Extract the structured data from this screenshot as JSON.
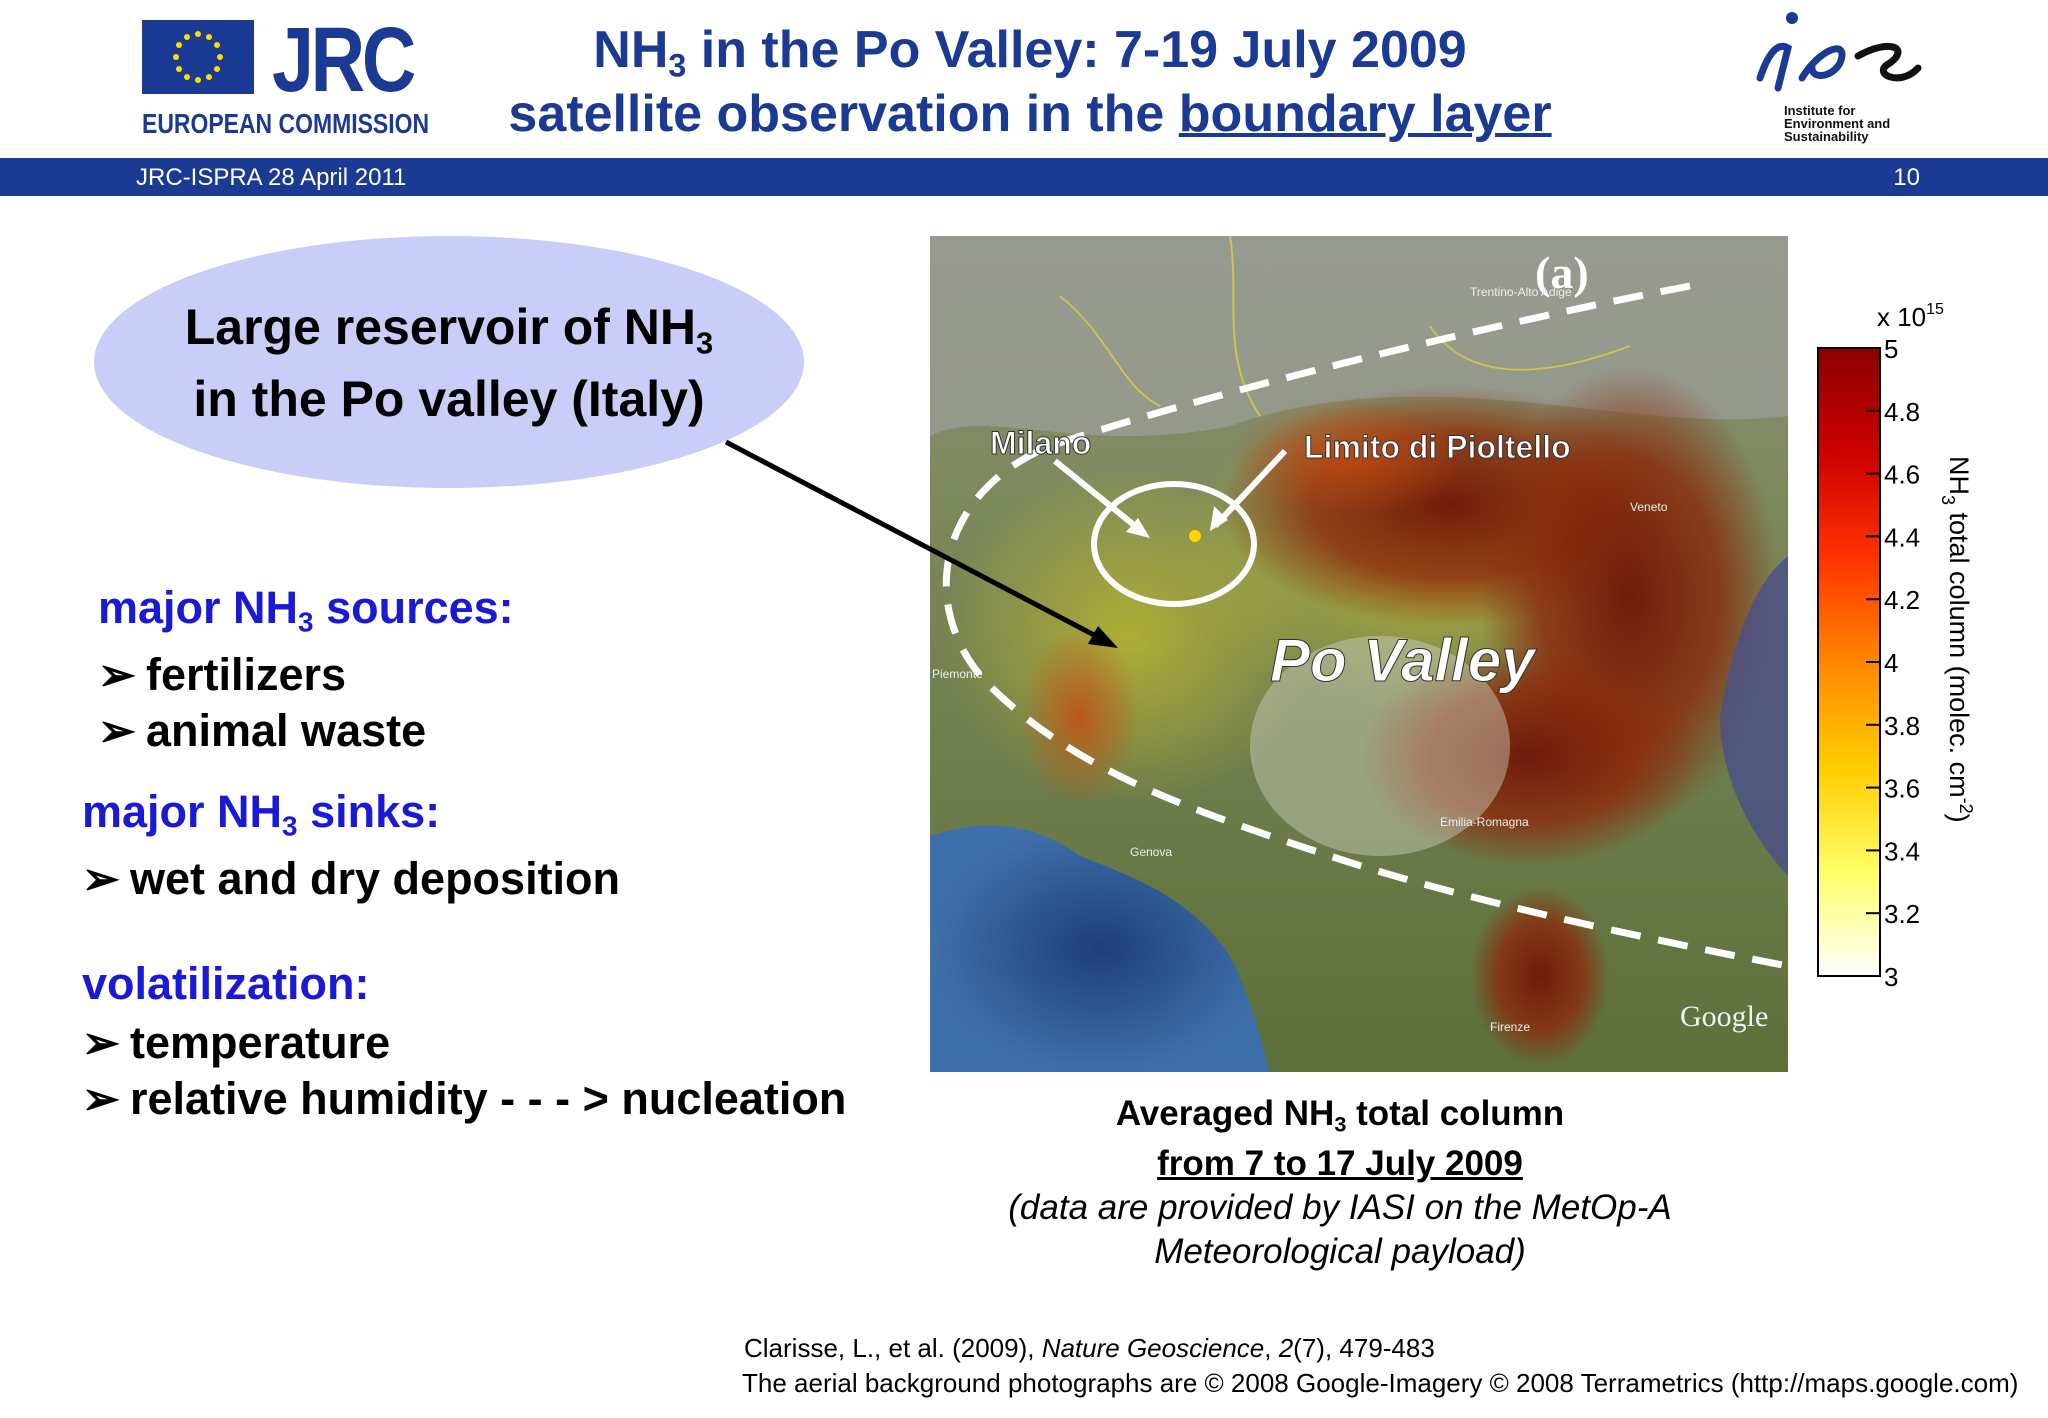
{
  "header": {
    "org_name": "JRC",
    "org_sub": "EUROPEAN COMMISSION",
    "title_line1_a": "NH",
    "title_line1_sub": "3",
    "title_line1_b": " in the Po Valley: 7-19 July 2009",
    "title_line2_a": "satellite observation in the ",
    "title_line2_u": "boundary layer",
    "ies_line1": "Institute for",
    "ies_line2": "Environment and",
    "ies_line3": "Sustainability",
    "band_left": "JRC-ISPRA 28 April 2011",
    "page_number": "10"
  },
  "ellipse": {
    "line1_a": "Large reservoir of NH",
    "line1_sub": "3",
    "line2": "in the Po valley (Italy)"
  },
  "sources": {
    "heading_a": "major NH",
    "heading_sub": "3",
    "heading_b": " sources:",
    "items": [
      "fertilizers",
      "animal waste"
    ]
  },
  "sinks": {
    "heading_a": "major NH",
    "heading_sub": "3",
    "heading_b": " sinks:",
    "items": [
      "wet and dry deposition"
    ]
  },
  "volatilization": {
    "heading": "volatilization:",
    "items": [
      "temperature",
      "relative humidity - - - > nucleation"
    ]
  },
  "bullet_glyph": "➢",
  "map": {
    "panel_label": "(a)",
    "label_milano": "Milano",
    "label_limito": "Limito di Pioltello",
    "label_po": "Po Valley",
    "label_google": "Google",
    "label_genova": "Genova",
    "label_firenze": "Firenze",
    "label_emilia": "Emilia-Romagna",
    "label_trentino": "Trentino-Alto Adige",
    "label_veneto": "Veneto",
    "label_piemonte": "Piemonte"
  },
  "colorbar": {
    "multiplier_base": "x 10",
    "multiplier_exp": "15",
    "ticks": [
      "5",
      "4.8",
      "4.6",
      "4.4",
      "4.2",
      "4",
      "3.8",
      "3.6",
      "3.4",
      "3.2",
      "3"
    ],
    "label_a": "NH",
    "label_sub": "3",
    "label_b": " total column (molec. cm",
    "label_exp": "-2",
    "label_c": ")",
    "colors": [
      "#8b0000",
      "#cc0000",
      "#ff3300",
      "#ff8800",
      "#ffcc00",
      "#ffff66",
      "#ffffff"
    ]
  },
  "caption": {
    "line1_a": "Averaged NH",
    "line1_sub": "3",
    "line1_b": " total column",
    "line2": "from 7 to 17 July 2009",
    "line3": "(data are provided by IASI on the MetOp-A",
    "line4": "Meteorological payload)"
  },
  "references": {
    "ref1_a": "Clarisse, L., et al. (2009), ",
    "ref1_journal": "Nature Geoscience",
    "ref1_b": ", ",
    "ref1_vol": "2",
    "ref1_c": "(7), 479-483",
    "ref2": "The aerial background photographs are © 2008 Google-Imagery © 2008 Terrametrics (http://maps.google.com)"
  }
}
